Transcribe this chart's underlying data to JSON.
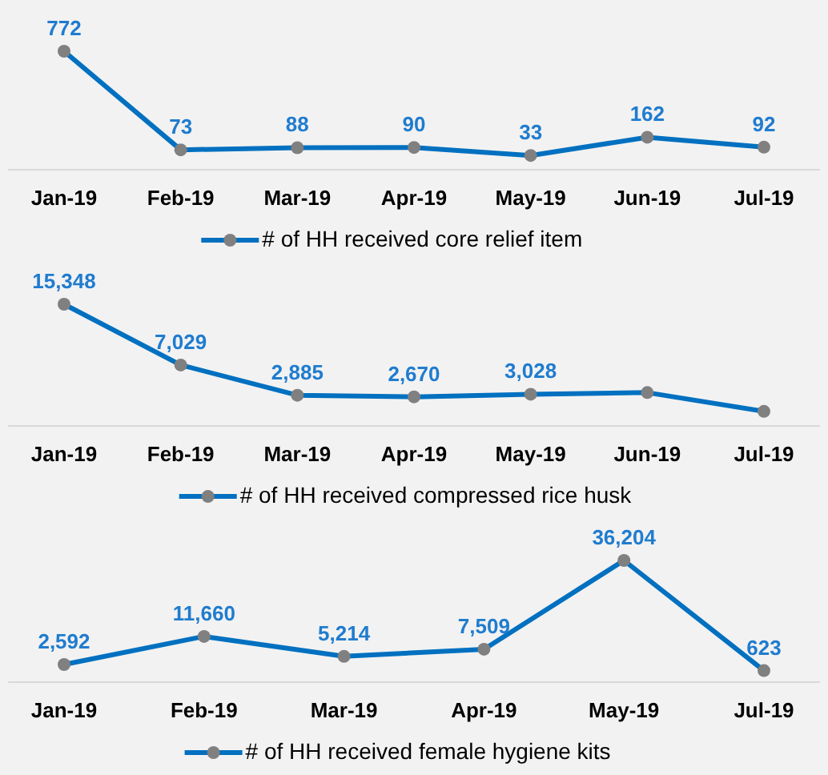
{
  "chart_data": [
    {
      "type": "line",
      "categories": [
        "Jan-19",
        "Feb-19",
        "Mar-19",
        "Apr-19",
        "May-19",
        "Jun-19",
        "Jul-19"
      ],
      "series": [
        {
          "name": "# of HH received core relief item",
          "color": "#0070c0",
          "values": [
            772,
            73,
            88,
            90,
            33,
            162,
            92
          ]
        }
      ],
      "data_labels": true,
      "marker": "circle",
      "legend": "bottom",
      "grid": false
    },
    {
      "type": "line",
      "categories": [
        "Jan-19",
        "Feb-19",
        "Mar-19",
        "Apr-19",
        "May-19",
        "Jun-19",
        "Jul-19"
      ],
      "series": [
        {
          "name": "# of HH received compressed rice husk",
          "color": "#0070c0",
          "values": [
            15348,
            7029,
            2885,
            2670,
            3028,
            3250,
            680
          ],
          "value_labels": [
            "15,348",
            "7,029",
            "2,885",
            "2,670",
            "3,028",
            null,
            null
          ]
        }
      ],
      "marker": "circle",
      "legend": "bottom",
      "grid": false
    },
    {
      "type": "line",
      "categories": [
        "Jan-19",
        "Feb-19",
        "Mar-19",
        "Apr-19",
        "May-19",
        "Jul-19"
      ],
      "series": [
        {
          "name": "# of HH received female hygiene kits",
          "color": "#0070c0",
          "values": [
            2592,
            11660,
            5214,
            7509,
            36204,
            623
          ],
          "value_labels": [
            "2,592",
            "11,660",
            "5,214",
            "7,509",
            "36,204",
            "623"
          ]
        }
      ],
      "marker": "circle",
      "legend": "bottom",
      "grid": false
    }
  ]
}
